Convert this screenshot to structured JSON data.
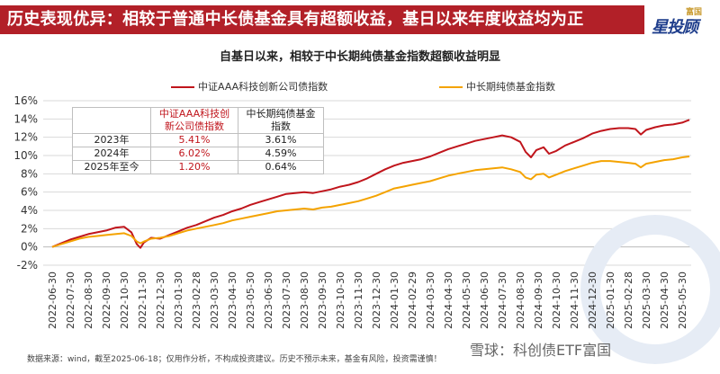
{
  "header": {
    "title": "历史表现优异：相较于普通中长债基金具有超额收益，基日以来年度收益均为正",
    "logo_small": "富国",
    "logo_main": "星投顾"
  },
  "colors": {
    "header_bg": "#b22028",
    "series1": "#c0151c",
    "series2": "#f4a300",
    "grid": "#d9d9d9"
  },
  "table": {
    "headers": [
      "",
      "中证AAA科技创新公司债指数",
      "中长期纯债基金指数"
    ],
    "rows": [
      [
        "2023年",
        "5.41%",
        "3.61%"
      ],
      [
        "2024年",
        "6.02%",
        "4.59%"
      ],
      [
        "2025年至今",
        "1.20%",
        "0.64%"
      ]
    ]
  },
  "footer": {
    "note": "数据来源：wind，截至2025-06-18；仅用作分析，不构成投资建议。历史不预示未来，基金有风险，投资需谨慎！",
    "brand": "雪球：科创债ETF富国"
  },
  "chart_data": {
    "type": "line",
    "title": "自基日以来，相较于中长期纯债基金指数超额收益明显",
    "xlabel": "",
    "ylabel": "",
    "ylim": [
      -2,
      16
    ],
    "yticks": [
      "-2%",
      "0%",
      "2%",
      "4%",
      "6%",
      "8%",
      "10%",
      "12%",
      "14%",
      "16%"
    ],
    "ytick_values": [
      -2,
      0,
      2,
      4,
      6,
      8,
      10,
      12,
      14,
      16
    ],
    "x_categories": [
      "2022-06-30",
      "2022-07-30",
      "2022-08-30",
      "2022-09-30",
      "2022-10-30",
      "2022-11-30",
      "2022-12-30",
      "2023-01-30",
      "2023-02-28",
      "2023-03-30",
      "2023-04-30",
      "2023-05-30",
      "2023-06-30",
      "2023-07-30",
      "2023-08-30",
      "2023-09-30",
      "2023-10-30",
      "2023-11-30",
      "2023-12-30",
      "2024-01-30",
      "2024-02-29",
      "2024-03-30",
      "2024-04-30",
      "2024-05-30",
      "2024-06-30",
      "2024-07-30",
      "2024-08-30",
      "2024-09-30",
      "2024-10-30",
      "2024-11-30",
      "2024-12-30",
      "2025-01-30",
      "2025-02-28",
      "2025-03-30",
      "2025-04-30",
      "2025-05-30"
    ],
    "grid": true,
    "legend_position": "top",
    "series": [
      {
        "name": "中证AAA科技创新公司债指数",
        "color": "#c0151c",
        "points": [
          [
            0,
            0
          ],
          [
            0.5,
            0.4
          ],
          [
            1,
            0.8
          ],
          [
            1.5,
            1.1
          ],
          [
            2,
            1.4
          ],
          [
            2.5,
            1.6
          ],
          [
            3,
            1.8
          ],
          [
            3.5,
            2.1
          ],
          [
            4,
            2.2
          ],
          [
            4.4,
            1.6
          ],
          [
            4.7,
            0.3
          ],
          [
            4.9,
            -0.1
          ],
          [
            5.1,
            0.5
          ],
          [
            5.5,
            1.0
          ],
          [
            6,
            0.9
          ],
          [
            6.5,
            1.3
          ],
          [
            7,
            1.7
          ],
          [
            7.5,
            2.1
          ],
          [
            8,
            2.4
          ],
          [
            8.5,
            2.8
          ],
          [
            9,
            3.2
          ],
          [
            9.5,
            3.5
          ],
          [
            10,
            3.9
          ],
          [
            10.5,
            4.2
          ],
          [
            11,
            4.6
          ],
          [
            11.5,
            4.9
          ],
          [
            12,
            5.2
          ],
          [
            12.5,
            5.5
          ],
          [
            13,
            5.8
          ],
          [
            13.5,
            5.9
          ],
          [
            14,
            6.0
          ],
          [
            14.5,
            5.9
          ],
          [
            15,
            6.1
          ],
          [
            15.5,
            6.3
          ],
          [
            16,
            6.6
          ],
          [
            16.5,
            6.8
          ],
          [
            17,
            7.1
          ],
          [
            17.5,
            7.5
          ],
          [
            18,
            8.0
          ],
          [
            18.5,
            8.5
          ],
          [
            19,
            8.9
          ],
          [
            19.5,
            9.2
          ],
          [
            20,
            9.4
          ],
          [
            20.5,
            9.6
          ],
          [
            21,
            9.9
          ],
          [
            21.5,
            10.3
          ],
          [
            22,
            10.7
          ],
          [
            22.5,
            11.0
          ],
          [
            23,
            11.3
          ],
          [
            23.5,
            11.6
          ],
          [
            24,
            11.8
          ],
          [
            24.5,
            12.0
          ],
          [
            25,
            12.2
          ],
          [
            25.5,
            12.0
          ],
          [
            26,
            11.5
          ],
          [
            26.3,
            10.4
          ],
          [
            26.6,
            9.8
          ],
          [
            26.9,
            10.6
          ],
          [
            27.3,
            10.9
          ],
          [
            27.6,
            10.2
          ],
          [
            28,
            10.5
          ],
          [
            28.5,
            11.1
          ],
          [
            29,
            11.5
          ],
          [
            29.5,
            11.9
          ],
          [
            30,
            12.4
          ],
          [
            30.5,
            12.7
          ],
          [
            31,
            12.9
          ],
          [
            31.5,
            13.0
          ],
          [
            32,
            13.0
          ],
          [
            32.4,
            12.9
          ],
          [
            32.7,
            12.3
          ],
          [
            33,
            12.8
          ],
          [
            33.5,
            13.1
          ],
          [
            34,
            13.3
          ],
          [
            34.5,
            13.4
          ],
          [
            35,
            13.6
          ],
          [
            35.4,
            13.9
          ]
        ]
      },
      {
        "name": "中长期纯债基金指数",
        "color": "#f4a300",
        "points": [
          [
            0,
            0
          ],
          [
            0.5,
            0.3
          ],
          [
            1,
            0.6
          ],
          [
            1.5,
            0.9
          ],
          [
            2,
            1.1
          ],
          [
            2.5,
            1.2
          ],
          [
            3,
            1.3
          ],
          [
            3.5,
            1.4
          ],
          [
            4,
            1.5
          ],
          [
            4.4,
            1.2
          ],
          [
            4.7,
            0.6
          ],
          [
            4.9,
            0.4
          ],
          [
            5.1,
            0.6
          ],
          [
            5.5,
            0.9
          ],
          [
            6,
            1.0
          ],
          [
            6.5,
            1.2
          ],
          [
            7,
            1.5
          ],
          [
            7.5,
            1.8
          ],
          [
            8,
            2.0
          ],
          [
            8.5,
            2.2
          ],
          [
            9,
            2.4
          ],
          [
            9.5,
            2.6
          ],
          [
            10,
            2.9
          ],
          [
            10.5,
            3.1
          ],
          [
            11,
            3.3
          ],
          [
            11.5,
            3.5
          ],
          [
            12,
            3.7
          ],
          [
            12.5,
            3.9
          ],
          [
            13,
            4.0
          ],
          [
            13.5,
            4.1
          ],
          [
            14,
            4.2
          ],
          [
            14.5,
            4.1
          ],
          [
            15,
            4.3
          ],
          [
            15.5,
            4.4
          ],
          [
            16,
            4.6
          ],
          [
            16.5,
            4.8
          ],
          [
            17,
            5.0
          ],
          [
            17.5,
            5.3
          ],
          [
            18,
            5.6
          ],
          [
            18.5,
            6.0
          ],
          [
            19,
            6.4
          ],
          [
            19.5,
            6.6
          ],
          [
            20,
            6.8
          ],
          [
            20.5,
            7.0
          ],
          [
            21,
            7.2
          ],
          [
            21.5,
            7.5
          ],
          [
            22,
            7.8
          ],
          [
            22.5,
            8.0
          ],
          [
            23,
            8.2
          ],
          [
            23.5,
            8.4
          ],
          [
            24,
            8.5
          ],
          [
            24.5,
            8.6
          ],
          [
            25,
            8.7
          ],
          [
            25.5,
            8.5
          ],
          [
            26,
            8.2
          ],
          [
            26.3,
            7.6
          ],
          [
            26.6,
            7.4
          ],
          [
            26.9,
            7.9
          ],
          [
            27.3,
            8.0
          ],
          [
            27.6,
            7.6
          ],
          [
            28,
            7.9
          ],
          [
            28.5,
            8.3
          ],
          [
            29,
            8.6
          ],
          [
            29.5,
            8.9
          ],
          [
            30,
            9.2
          ],
          [
            30.5,
            9.4
          ],
          [
            31,
            9.4
          ],
          [
            31.5,
            9.3
          ],
          [
            32,
            9.2
          ],
          [
            32.4,
            9.1
          ],
          [
            32.7,
            8.7
          ],
          [
            33,
            9.1
          ],
          [
            33.5,
            9.3
          ],
          [
            34,
            9.5
          ],
          [
            34.5,
            9.6
          ],
          [
            35,
            9.8
          ],
          [
            35.4,
            9.9
          ]
        ]
      }
    ]
  }
}
